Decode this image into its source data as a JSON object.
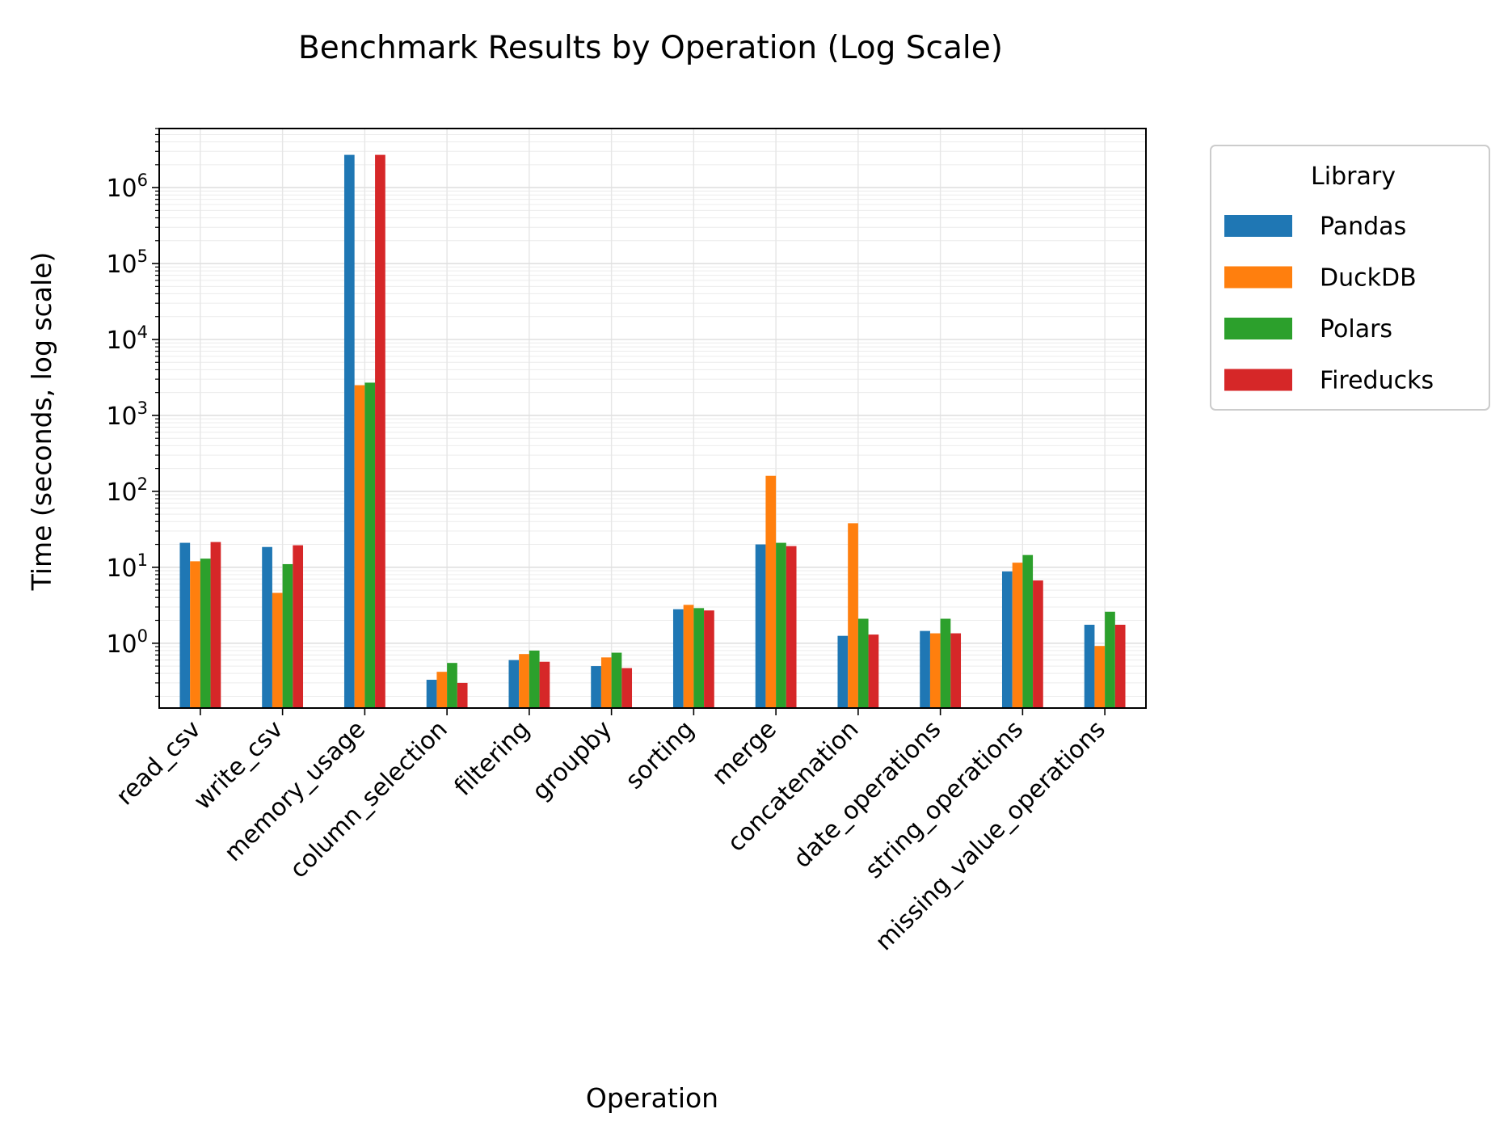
{
  "chart_data": {
    "type": "bar",
    "title": "Benchmark Results by Operation (Log Scale)",
    "xlabel": "Operation",
    "ylabel": "Time (seconds, log scale)",
    "yscale": "log",
    "ylim": [
      0.14,
      6000000
    ],
    "ytick_exponents": [
      0,
      1,
      2,
      3,
      4,
      5,
      6
    ],
    "ytick_base": "10",
    "grid": true,
    "legend": {
      "title": "Library",
      "placement": "outside-top-right"
    },
    "categories": [
      "read_csv",
      "write_csv",
      "memory_usage",
      "column_selection",
      "filtering",
      "groupby",
      "sorting",
      "merge",
      "concatenation",
      "date_operations",
      "string_operations",
      "missing_value_operations"
    ],
    "series": [
      {
        "name": "Pandas",
        "color": "#1f77b4",
        "values": [
          21,
          18.5,
          2700000,
          0.33,
          0.6,
          0.5,
          2.8,
          20,
          1.25,
          1.45,
          8.8,
          1.75
        ]
      },
      {
        "name": "DuckDB",
        "color": "#ff7f0e",
        "values": [
          12,
          4.6,
          2500,
          0.42,
          0.72,
          0.65,
          3.2,
          160,
          38,
          1.35,
          11.5,
          0.92
        ]
      },
      {
        "name": "Polars",
        "color": "#2ca02c",
        "values": [
          13,
          11,
          2700,
          0.55,
          0.8,
          0.75,
          2.9,
          21,
          2.1,
          2.1,
          14.5,
          2.6
        ]
      },
      {
        "name": "Fireducks",
        "color": "#d62728",
        "values": [
          21.5,
          19.5,
          2700000,
          0.3,
          0.57,
          0.47,
          2.7,
          19,
          1.3,
          1.35,
          6.7,
          1.75
        ]
      }
    ]
  }
}
